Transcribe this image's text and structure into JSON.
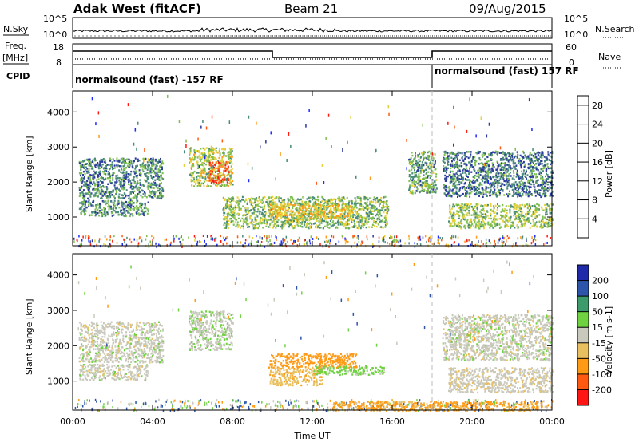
{
  "header": {
    "station": "Adak West (fitACF)",
    "beam": "Beam 21",
    "date": "09/Aug/2015"
  },
  "strips": {
    "nsky_label": "N.Sky",
    "nsky_ticks": [
      "10^5",
      "10^0"
    ],
    "nsearch_label": "N.Search",
    "freq_label": "Freq.",
    "freq_unit": "[MHz]",
    "freq_ticks": [
      "18",
      "8"
    ],
    "nave_ticks": [
      "60",
      "0"
    ],
    "nave_label": "Nave",
    "cpid_label": "CPID",
    "cpid_left": "normalsound (fast) -157 RF",
    "cpid_right": "normalsound (fast) 157 RF"
  },
  "colors": {
    "power": [
      "#1f2bff",
      "#2a3a9e",
      "#4a8a7a",
      "#7fbf50",
      "#e6d23a",
      "#ff9a1a",
      "#ff5a14",
      "#ff1a10"
    ],
    "velocity": [
      "#ff1414",
      "#ff5a10",
      "#ff9a14",
      "#e8c060",
      "#c8c8bd",
      "#6fd240",
      "#3d9a6a",
      "#2d55aa",
      "#1e2aaa"
    ],
    "background": "#ffffff"
  },
  "chart_data": [
    {
      "type": "heatmap",
      "name": "power",
      "ylabel": "Slant Range [km]",
      "xlim": [
        0,
        24
      ],
      "ylim": [
        180,
        4600
      ],
      "yticks": [
        1000,
        2000,
        3000,
        4000
      ],
      "colorbar_label": "Power [dB]",
      "colorbar_ticks": [
        4,
        8,
        12,
        16,
        20,
        24,
        28
      ],
      "colorbar_range": [
        0,
        30
      ],
      "regions": [
        {
          "t0": 0.3,
          "t1": 4.5,
          "r0": 1550,
          "r1": 2700,
          "level": 10
        },
        {
          "t0": 0.3,
          "t1": 3.8,
          "r0": 1050,
          "r1": 1500,
          "level": 11
        },
        {
          "t0": 5.8,
          "t1": 8.0,
          "r0": 1900,
          "r1": 3000,
          "level": 16
        },
        {
          "t0": 6.8,
          "t1": 7.8,
          "r0": 2000,
          "r1": 2600,
          "level": 26
        },
        {
          "t0": 7.5,
          "t1": 15.8,
          "r0": 700,
          "r1": 1600,
          "level": 14
        },
        {
          "t0": 9.8,
          "t1": 14.0,
          "r0": 950,
          "r1": 1400,
          "level": 19
        },
        {
          "t0": 16.8,
          "t1": 18.2,
          "r0": 1700,
          "r1": 2900,
          "level": 12
        },
        {
          "t0": 18.5,
          "t1": 24.0,
          "r0": 1600,
          "r1": 2900,
          "level": 9
        },
        {
          "t0": 18.8,
          "t1": 24.0,
          "r0": 700,
          "r1": 1400,
          "level": 15
        }
      ]
    },
    {
      "type": "heatmap",
      "name": "velocity",
      "ylabel": "Slant Range [km]",
      "xlabel": "Time UT",
      "xlim": [
        0,
        24
      ],
      "ylim": [
        180,
        4600
      ],
      "yticks": [
        1000,
        2000,
        3000,
        4000
      ],
      "xticks": [
        "00:00",
        "04:00",
        "08:00",
        "12:00",
        "16:00",
        "20:00",
        "00:00"
      ],
      "colorbar_label": "Velocity [m s-1]",
      "colorbar_ticks": [
        200,
        100,
        50,
        15,
        -15,
        -50,
        -100,
        -200
      ],
      "regions": [
        {
          "t0": 0.3,
          "t1": 4.5,
          "r0": 1550,
          "r1": 2700,
          "vel": 0
        },
        {
          "t0": 0.3,
          "t1": 3.8,
          "r0": 1050,
          "r1": 1500,
          "vel": 0
        },
        {
          "t0": 5.8,
          "t1": 8.0,
          "r0": 1900,
          "r1": 3000,
          "vel": 5
        },
        {
          "t0": 9.8,
          "t1": 14.2,
          "r0": 1400,
          "r1": 1800,
          "vel": -70
        },
        {
          "t0": 9.8,
          "t1": 12.5,
          "r0": 900,
          "r1": 1400,
          "vel": -40
        },
        {
          "t0": 12.0,
          "t1": 15.6,
          "r0": 1200,
          "r1": 1450,
          "vel": 30
        },
        {
          "t0": 18.5,
          "t1": 24.0,
          "r0": 1600,
          "r1": 2900,
          "vel": 0
        },
        {
          "t0": 18.8,
          "t1": 24.0,
          "r0": 700,
          "r1": 1400,
          "vel": -5
        },
        {
          "t0": 13.0,
          "t1": 23.5,
          "r0": 180,
          "r1": 450,
          "vel": -60
        }
      ]
    }
  ]
}
